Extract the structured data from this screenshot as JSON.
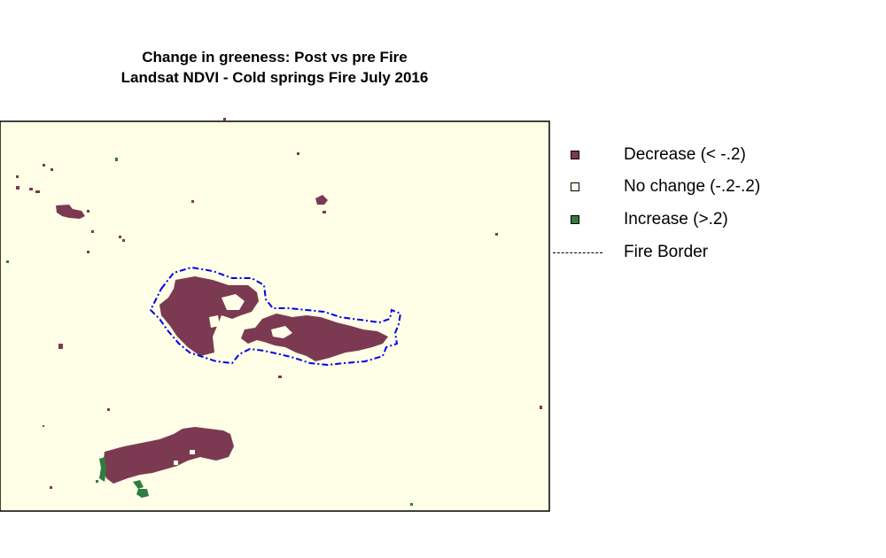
{
  "title_line1": "Change in greeness: Post vs pre Fire",
  "title_line2": "Landsat NDVI - Cold springs Fire July 2016",
  "colors": {
    "background": "#fffee6",
    "decrease": "#7b3a52",
    "increase": "#2e7d3f",
    "fire_border": "#0000ee",
    "frame": "#000000"
  },
  "legend": [
    {
      "label": "Decrease (< -.2)",
      "color": "#7b3a52",
      "kind": "square"
    },
    {
      "label": "No change (-.2-.2)",
      "color": "#fffee6",
      "kind": "square"
    },
    {
      "label": "Increase (>.2)",
      "color": "#2e7d3f",
      "kind": "square"
    },
    {
      "label": "Fire Border",
      "color": "#000000",
      "kind": "dash-dot-line"
    }
  ]
}
